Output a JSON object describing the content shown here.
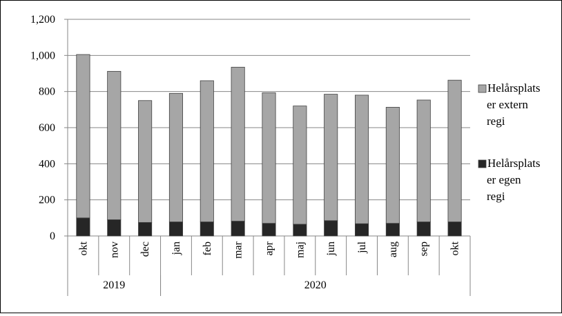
{
  "chart_data": {
    "type": "bar",
    "stacked": true,
    "categories": [
      "okt",
      "nov",
      "dec",
      "jan",
      "feb",
      "mar",
      "apr",
      "maj",
      "jun",
      "jul",
      "aug",
      "sep",
      "okt"
    ],
    "groups": [
      {
        "label": "2019",
        "start": 0,
        "end": 2
      },
      {
        "label": "2020",
        "start": 3,
        "end": 12
      }
    ],
    "series": [
      {
        "name": "Helårsplatser egen regi",
        "color": "#262626",
        "values": [
          100,
          90,
          75,
          78,
          78,
          82,
          70,
          65,
          85,
          68,
          70,
          78,
          78
        ]
      },
      {
        "name": "Helårsplatser extern regi",
        "color": "#a6a6a6",
        "values": [
          905,
          822,
          675,
          712,
          782,
          853,
          723,
          655,
          700,
          712,
          643,
          675,
          785
        ]
      }
    ],
    "ylim": [
      0,
      1200
    ],
    "yticks": [
      0,
      200,
      400,
      600,
      800,
      1000,
      1200
    ],
    "ytick_labels": [
      "0",
      "200",
      "400",
      "600",
      "800",
      "1,000",
      "1,200"
    ],
    "grid": true,
    "legend_position": "right",
    "legend_items": [
      {
        "lines": [
          "Helårsplats",
          "er extern",
          "regi"
        ],
        "color": "#a6a6a6"
      },
      {
        "lines": [
          "Helårsplats",
          "er egen",
          "regi"
        ],
        "color": "#262626"
      }
    ]
  }
}
